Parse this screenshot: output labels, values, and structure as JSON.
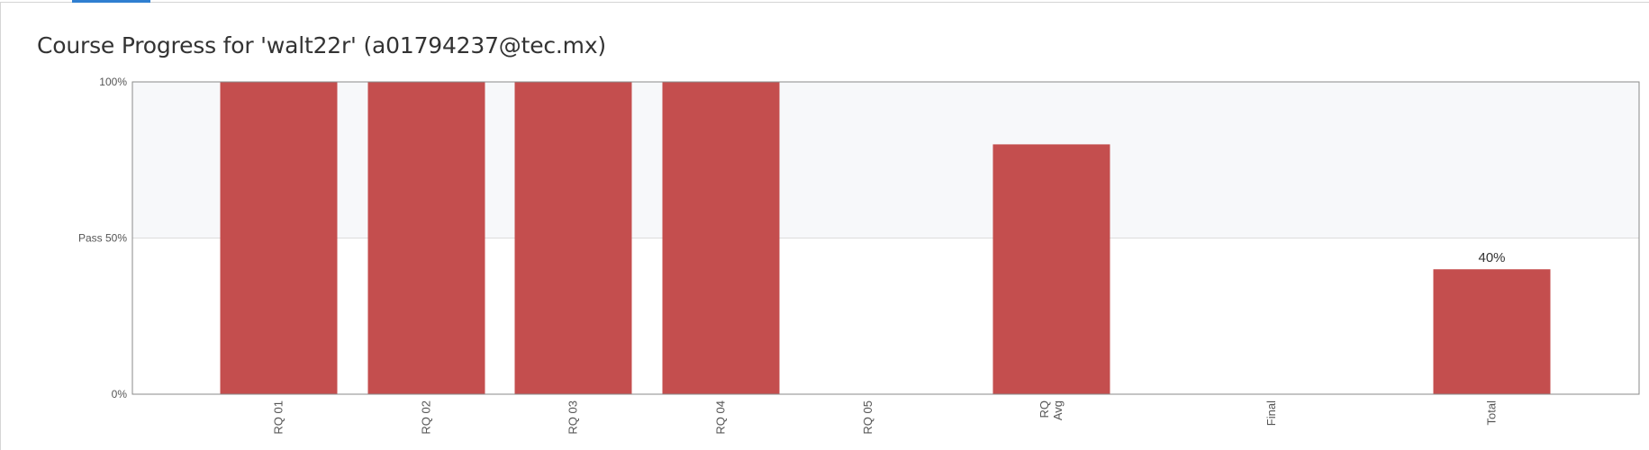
{
  "page": {
    "title": "Course Progress for 'walt22r' (a01794237@tec.mx)"
  },
  "colors": {
    "bar": "#c44e4e",
    "pass_band": "#f7f8fa",
    "active_tab": "#2f7fd1"
  },
  "chart_data": {
    "type": "bar",
    "title": "",
    "xlabel": "",
    "ylabel": "",
    "ylim": [
      0,
      100
    ],
    "y_ticks": [
      {
        "value": 0,
        "label": "0%"
      },
      {
        "value": 50,
        "label": "Pass 50%"
      },
      {
        "value": 100,
        "label": "100%"
      }
    ],
    "pass_threshold": 50,
    "categories": [
      {
        "label_lines": [
          "RQ 01"
        ]
      },
      {
        "label_lines": [
          "RQ 02"
        ]
      },
      {
        "label_lines": [
          "RQ 03"
        ]
      },
      {
        "label_lines": [
          "RQ 04"
        ]
      },
      {
        "label_lines": [
          "RQ 05"
        ]
      },
      {
        "label_lines": [
          "RQ",
          "Avg"
        ]
      },
      {
        "label_lines": [
          "Final"
        ]
      },
      {
        "label_lines": [
          "Total"
        ]
      }
    ],
    "values": [
      100,
      100,
      100,
      100,
      0,
      80,
      0,
      40
    ],
    "data_labels": [
      "",
      "",
      "",
      "",
      "",
      "",
      "",
      "40%"
    ]
  }
}
